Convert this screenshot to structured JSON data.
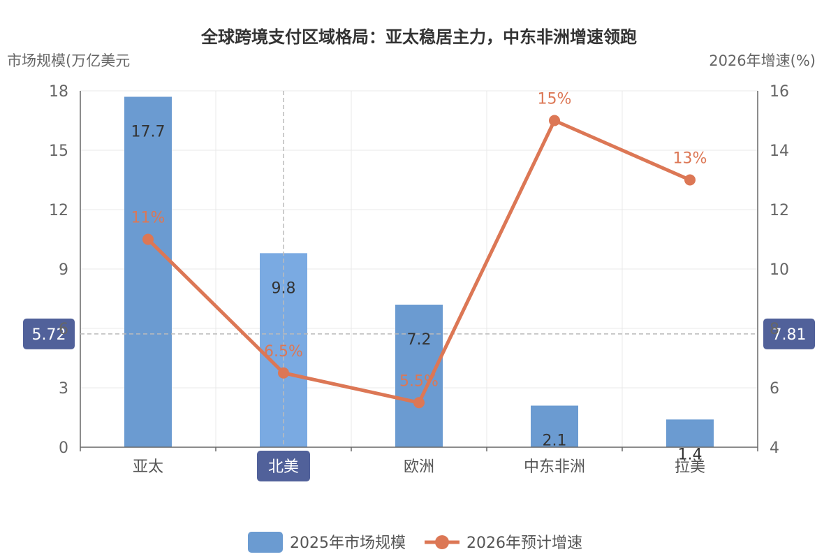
{
  "chart_data": {
    "type": "bar",
    "title": "全球跨境支付区域格局：亚太稳居主力，中东非洲增速领跑",
    "categories": [
      "亚太",
      "北美",
      "欧洲",
      "中东非洲",
      "拉美"
    ],
    "y_left": {
      "name": "市场规模(万亿美元",
      "min": 0,
      "max": 18,
      "ticks": [
        0,
        3,
        6,
        9,
        12,
        15,
        18
      ]
    },
    "y_right": {
      "name": "2026年增速(%)",
      "min": 4,
      "max": 16,
      "ticks": [
        4,
        6,
        8,
        10,
        12,
        14,
        16
      ]
    },
    "grid": true,
    "legend_position": "bottom",
    "series": [
      {
        "name": "2025年市场规模",
        "type": "bar",
        "axis": "left",
        "color": "#6b9bd1",
        "highlight_color": "#7aaae2",
        "values": [
          17.7,
          9.8,
          7.2,
          2.1,
          1.4
        ],
        "labels": [
          "17.7",
          "9.8",
          "7.2",
          "2.1",
          "1.4"
        ]
      },
      {
        "name": "2026年预计增速",
        "type": "line",
        "axis": "right",
        "color": "#dc7755",
        "values": [
          11,
          6.5,
          5.5,
          15,
          13
        ],
        "labels": [
          "11%",
          "6.5%",
          "5.5%",
          "15%",
          "13%"
        ]
      }
    ],
    "crosshair": {
      "category": "北美",
      "y_left_value": "5.72",
      "y_right_value": "7.81",
      "left_value": 5.72,
      "right_value": 7.81,
      "badge_color": "#51619a"
    }
  }
}
